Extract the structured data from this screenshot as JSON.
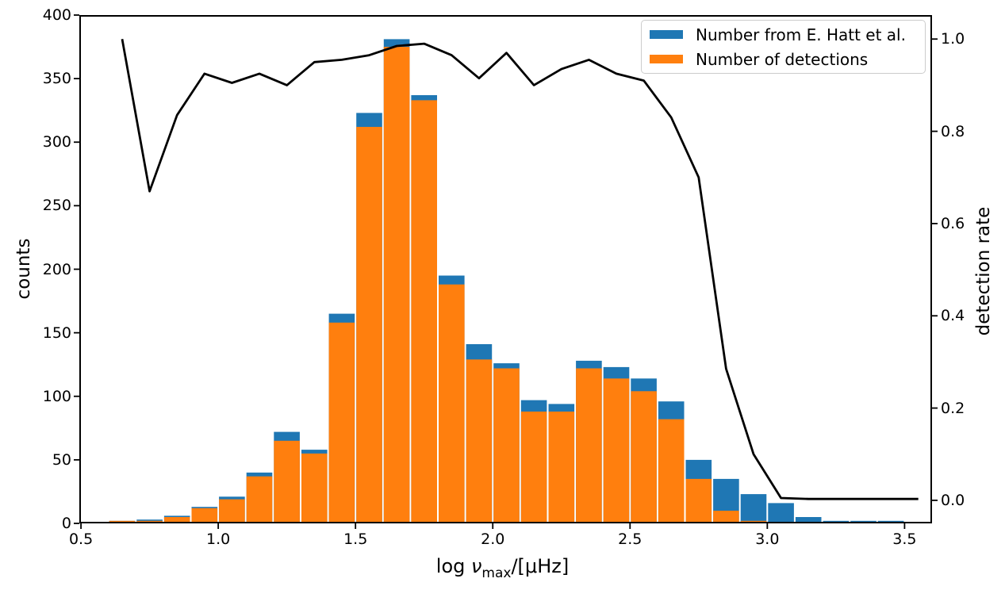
{
  "axes": {
    "xlabel_log": "log ",
    "xlabel_nu": "ν",
    "xlabel_sub": "max",
    "xlabel_rest": "/[μHz]",
    "ylabel_left": "counts",
    "ylabel_right": "detection rate"
  },
  "legend": {
    "items": [
      {
        "label": "Number from E. Hatt et al.",
        "color": "#1f77b4"
      },
      {
        "label": "Number of detections",
        "color": "#ff7f0e"
      }
    ]
  },
  "chart_data": {
    "type": "bar",
    "title": "",
    "xlabel": "log ν_max/[μHz]",
    "ylabel_left": "counts",
    "ylabel_right": "detection rate",
    "bin_width": 0.1,
    "bin_centers": [
      0.65,
      0.75,
      0.85,
      0.95,
      1.05,
      1.15,
      1.25,
      1.35,
      1.45,
      1.55,
      1.65,
      1.75,
      1.85,
      1.95,
      2.05,
      2.15,
      2.25,
      2.35,
      2.45,
      2.55,
      2.65,
      2.75,
      2.85,
      2.95,
      3.05,
      3.15,
      3.25,
      3.35,
      3.45,
      3.55
    ],
    "series": [
      {
        "name": "Number from E. Hatt et al.",
        "type": "bar",
        "axis": "left",
        "color": "#1f77b4",
        "values": [
          2,
          3,
          6,
          13,
          21,
          40,
          72,
          58,
          165,
          323,
          381,
          337,
          195,
          141,
          126,
          97,
          94,
          128,
          123,
          114,
          96,
          50,
          35,
          23,
          16,
          5,
          2,
          2,
          2,
          1
        ]
      },
      {
        "name": "Number of detections",
        "type": "bar",
        "axis": "left",
        "color": "#ff7f0e",
        "values": [
          2,
          2,
          5,
          12,
          19,
          37,
          65,
          55,
          158,
          312,
          375,
          333,
          188,
          129,
          122,
          88,
          88,
          122,
          114,
          104,
          82,
          35,
          10,
          2,
          0,
          0,
          0,
          0,
          0,
          0
        ]
      },
      {
        "name": "detection rate",
        "type": "line",
        "axis": "right",
        "color": "#000000",
        "values": [
          1.0,
          0.67,
          0.835,
          0.925,
          0.905,
          0.925,
          0.9,
          0.95,
          0.955,
          0.965,
          0.985,
          0.99,
          0.965,
          0.915,
          0.97,
          0.9,
          0.935,
          0.955,
          0.925,
          0.91,
          0.83,
          0.7,
          0.285,
          0.1,
          0.005,
          0.003,
          0.003,
          0.003,
          0.003,
          0.003
        ]
      }
    ],
    "xlim": [
      0.494,
      3.6
    ],
    "ylim_left": [
      0,
      400
    ],
    "ylim_right": [
      -0.05,
      1.052
    ],
    "x_ticks": [
      0.5,
      1.0,
      1.5,
      2.0,
      2.5,
      3.0,
      3.5
    ],
    "x_tick_labels": [
      "0.5",
      "1.0",
      "1.5",
      "2.0",
      "2.5",
      "3.0",
      "3.5"
    ],
    "y_ticks_left": [
      0,
      50,
      100,
      150,
      200,
      250,
      300,
      350,
      400
    ],
    "y_tick_labels_left": [
      "0",
      "50",
      "100",
      "150",
      "200",
      "250",
      "300",
      "350",
      "400"
    ],
    "y_ticks_right": [
      0.0,
      0.2,
      0.4,
      0.6,
      0.8,
      1.0
    ],
    "y_tick_labels_right": [
      "0.0",
      "0.2",
      "0.4",
      "0.6",
      "0.8",
      "1.0"
    ],
    "grid": false,
    "legend_position": "upper right"
  }
}
